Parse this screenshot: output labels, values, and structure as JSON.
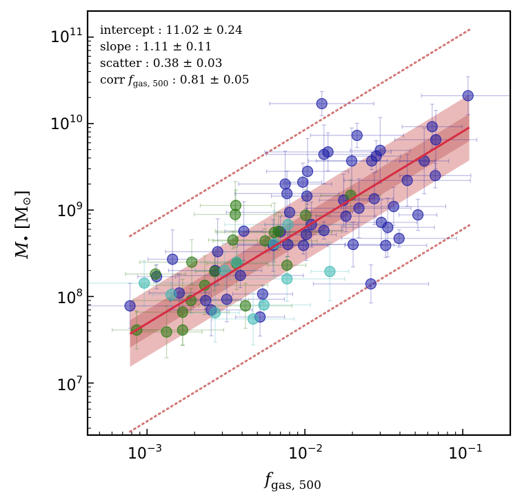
{
  "chart_data": {
    "type": "scatter",
    "x_scale": "log",
    "y_scale": "log",
    "xlim": [
      0.00042,
      0.2
    ],
    "ylim": [
      2500000,
      200000000000
    ],
    "x_ticks": [
      {
        "value": 0.001,
        "base": "10",
        "exp": "−3"
      },
      {
        "value": 0.01,
        "base": "10",
        "exp": "−2"
      },
      {
        "value": 0.1,
        "base": "10",
        "exp": "−1"
      }
    ],
    "y_ticks": [
      {
        "value": 10000000,
        "base": "10",
        "exp": "7"
      },
      {
        "value": 100000000,
        "base": "10",
        "exp": "8"
      },
      {
        "value": 1000000000,
        "base": "10",
        "exp": "9"
      },
      {
        "value": 10000000000,
        "base": "10",
        "exp": "10"
      },
      {
        "value": 100000000000,
        "base": "10",
        "exp": "11"
      }
    ],
    "xlabel": {
      "italic": "f",
      "sub": "gas, 500"
    },
    "ylabel": {
      "main": "M",
      "sub": "•",
      "unit": "[M",
      "unit_sub": "⊙",
      "unit_close": "]"
    },
    "annotations": {
      "intercept": "intercept :  11.02 ± 0.24",
      "slope": "slope :  1.11 ± 0.11",
      "scatter": "scatter :  0.38 ± 0.03",
      "corr_prefix": "corr ",
      "corr_italic": "f",
      "corr_sub": "gas, 500",
      "corr_value": " :  0.81 ± 0.05"
    },
    "fit": {
      "x_range": [
        0.00078,
        0.11
      ],
      "y_start": 37000000,
      "y_end": 9000000000,
      "inner_band_factor": 1.25,
      "outer_band_factor": 2.4,
      "dotted_offset_factor": 13.5,
      "color": "#d62c43"
    },
    "series": [
      {
        "name": "blue",
        "color": "#2020a8",
        "points": [
          [
            0.00078,
            78000000
          ],
          [
            0.00115,
            170000000
          ],
          [
            0.00145,
            270000000
          ],
          [
            0.0016,
            110000000
          ],
          [
            0.00235,
            90000000
          ],
          [
            0.00255,
            70000000
          ],
          [
            0.0027,
            200000000
          ],
          [
            0.0028,
            330000000
          ],
          [
            0.0032,
            93000000
          ],
          [
            0.0039,
            175000000
          ],
          [
            0.0041,
            570000000
          ],
          [
            0.0052,
            58000000
          ],
          [
            0.0054,
            107000000
          ],
          [
            0.0063,
            390000000
          ],
          [
            0.007,
            560000000
          ],
          [
            0.0075,
            2000000000
          ],
          [
            0.0077,
            1550000000
          ],
          [
            0.0078,
            400000000
          ],
          [
            0.008,
            940000000
          ],
          [
            0.0097,
            2100000000
          ],
          [
            0.0098,
            390000000
          ],
          [
            0.0102,
            520000000
          ],
          [
            0.0103,
            1450000000
          ],
          [
            0.0104,
            2800000000
          ],
          [
            0.011,
            680000000
          ],
          [
            0.0128,
            17000000000
          ],
          [
            0.0132,
            4400000000
          ],
          [
            0.014,
            4700000000
          ],
          [
            0.0132,
            580000000
          ],
          [
            0.0176,
            1300000000
          ],
          [
            0.0182,
            850000000
          ],
          [
            0.0198,
            3700000000
          ],
          [
            0.0202,
            400000000
          ],
          [
            0.0214,
            7300000000
          ],
          [
            0.022,
            1050000000
          ],
          [
            0.0262,
            140000000
          ],
          [
            0.0265,
            3700000000
          ],
          [
            0.0275,
            1350000000
          ],
          [
            0.0283,
            4200000000
          ],
          [
            0.03,
            4900000000
          ],
          [
            0.0305,
            720000000
          ],
          [
            0.0325,
            390000000
          ],
          [
            0.0335,
            630000000
          ],
          [
            0.0365,
            1100000000
          ],
          [
            0.0395,
            470000000
          ],
          [
            0.0445,
            2200000000
          ],
          [
            0.052,
            880000000
          ],
          [
            0.057,
            3700000000
          ],
          [
            0.064,
            9200000000
          ],
          [
            0.067,
            2500000000
          ],
          [
            0.0675,
            6500000000
          ],
          [
            0.108,
            21000000000
          ]
        ]
      },
      {
        "name": "green",
        "color": "#2a7a10",
        "points": [
          [
            0.00086,
            41000000
          ],
          [
            0.00113,
            182000000
          ],
          [
            0.00133,
            39000000
          ],
          [
            0.00168,
            41000000
          ],
          [
            0.00168,
            66000000
          ],
          [
            0.00192,
            250000000
          ],
          [
            0.0019,
            90000000
          ],
          [
            0.00232,
            135000000
          ],
          [
            0.00268,
            195000000
          ],
          [
            0.0035,
            450000000
          ],
          [
            0.0037,
            240000000
          ],
          [
            0.00365,
            1130000000
          ],
          [
            0.00362,
            890000000
          ],
          [
            0.0042,
            78000000
          ],
          [
            0.0056,
            440000000
          ],
          [
            0.0064,
            550000000
          ],
          [
            0.0068,
            570000000
          ],
          [
            0.0077,
            230000000
          ],
          [
            0.0101,
            870000000
          ],
          [
            0.0195,
            1480000000
          ]
        ]
      },
      {
        "name": "cyan",
        "color": "#39b8b2",
        "points": [
          [
            0.00096,
            143000000
          ],
          [
            0.00142,
            105000000
          ],
          [
            0.0027,
            65000000
          ],
          [
            0.0031,
            200000000
          ],
          [
            0.0037,
            250000000
          ],
          [
            0.0047,
            55000000
          ],
          [
            0.0055,
            80000000
          ],
          [
            0.0064,
            410000000
          ],
          [
            0.0077,
            160000000
          ],
          [
            0.0078,
            680000000
          ],
          [
            0.0144,
            195000000
          ]
        ]
      }
    ]
  }
}
